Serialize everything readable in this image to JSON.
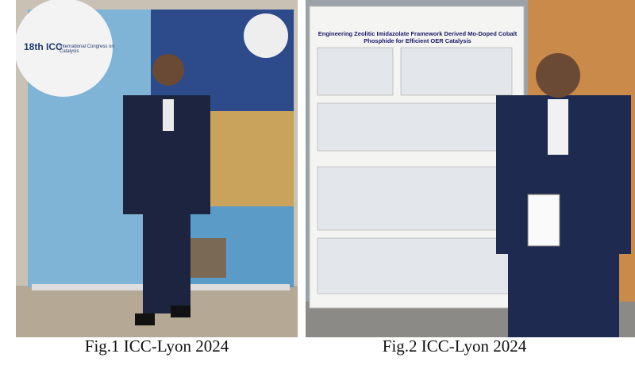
{
  "figures": [
    {
      "caption": "Fig.1 ICC-Lyon 2024",
      "banner": {
        "title": "18th ICC",
        "subtitle": "International Congress on Catalysis"
      }
    },
    {
      "caption": "Fig.2 ICC-Lyon 2024",
      "poster": {
        "title": "Engineering Zeolitic Imidazolate Framework Derived Mo-Doped Cobalt Phosphide for Efficient OER Catalysis"
      }
    }
  ]
}
